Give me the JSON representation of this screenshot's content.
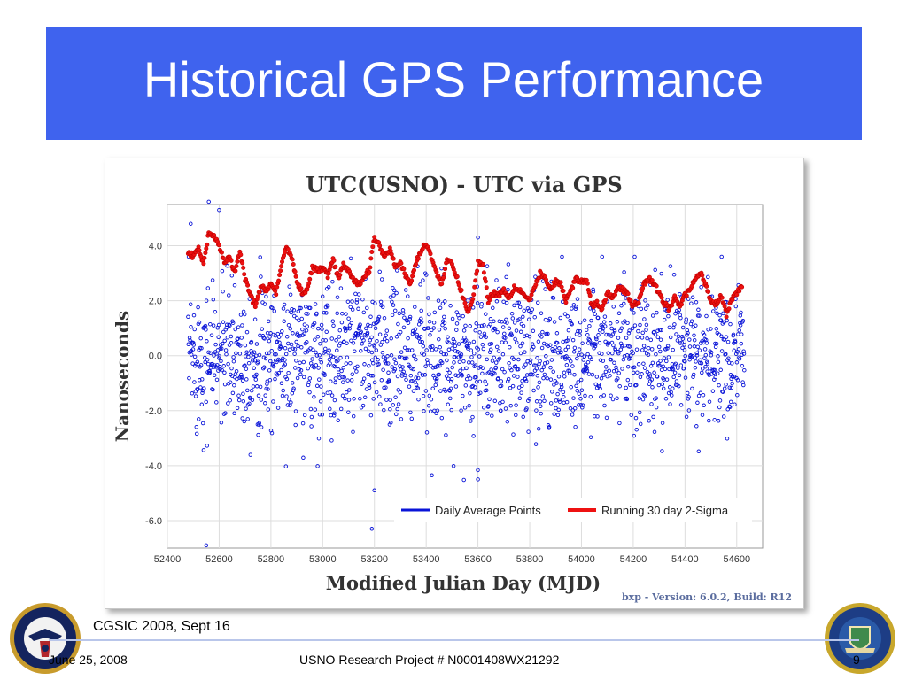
{
  "slide": {
    "title": "Historical GPS Performance",
    "footer_event": "CGSIC 2008, Sept 16",
    "footer_date": "June 25, 2008",
    "footer_project": "USNO Research Project # N0001408WX21292",
    "page_number": "9",
    "left_seal_icon": "navy-seal-icon",
    "right_seal_icon": "state-seal-icon",
    "colors": {
      "title_bar": "#3f63ee",
      "daily": "#0a14d8",
      "sigma": "#ee1111"
    }
  },
  "chart_data": {
    "type": "scatter",
    "title": "UTC(USNO) - UTC via GPS",
    "xlabel": "Modified Julian Day (MJD)",
    "ylabel": "Nanoseconds",
    "xlim": [
      52400,
      54700
    ],
    "ylim": [
      -7.0,
      5.5
    ],
    "x_ticks": [
      "52400",
      "52600",
      "52800",
      "53000",
      "53200",
      "53400",
      "53600",
      "53800",
      "54000",
      "54200",
      "54400",
      "54600"
    ],
    "y_ticks": [
      "4.0",
      "2.0",
      "0.0",
      "-2.0",
      "-4.0",
      "-6.0"
    ],
    "grid": true,
    "legend_position": "bottom-right",
    "version_note": "bxp - Version: 6.0.2, Build: R12",
    "series": [
      {
        "name": "Daily Average Points",
        "style": "open-circle-scatter",
        "approx_center": 0.0,
        "approx_spread": 1.3,
        "outliers": [
          [
            52560,
            5.6
          ],
          [
            52600,
            5.3
          ],
          [
            52550,
            -6.9
          ],
          [
            53190,
            -6.3
          ],
          [
            53600,
            4.3
          ],
          [
            53200,
            -4.9
          ],
          [
            53600,
            -4.5
          ],
          [
            52490,
            4.8
          ]
        ]
      },
      {
        "name": "Running 30 day 2-Sigma",
        "style": "dense-marker-line",
        "x": [
          52480,
          52500,
          52520,
          52540,
          52560,
          52580,
          52600,
          52620,
          52640,
          52660,
          52680,
          52700,
          52720,
          52740,
          52760,
          52780,
          52800,
          52820,
          52840,
          52860,
          52880,
          52900,
          52920,
          52940,
          52960,
          52980,
          53000,
          53020,
          53040,
          53060,
          53080,
          53100,
          53120,
          53140,
          53160,
          53180,
          53200,
          53220,
          53240,
          53260,
          53280,
          53300,
          53320,
          53340,
          53360,
          53380,
          53400,
          53420,
          53440,
          53460,
          53480,
          53500,
          53520,
          53540,
          53560,
          53580,
          53600,
          53620,
          53640,
          53660,
          53680,
          53700,
          53720,
          53740,
          53760,
          53780,
          53800,
          53820,
          53840,
          53860,
          53880,
          53900,
          53920,
          53940,
          53960,
          53980,
          54000,
          54020,
          54040,
          54060,
          54080,
          54100,
          54120,
          54140,
          54160,
          54180,
          54200,
          54220,
          54240,
          54260,
          54280,
          54300,
          54320,
          54340,
          54360,
          54380,
          54400,
          54420,
          54440,
          54460,
          54480,
          54500,
          54520,
          54540,
          54560,
          54580,
          54600,
          54620
        ],
        "y": [
          3.8,
          3.6,
          3.9,
          3.3,
          4.5,
          4.3,
          4.0,
          3.4,
          3.6,
          3.0,
          3.8,
          2.8,
          2.2,
          1.8,
          2.5,
          2.4,
          2.6,
          2.3,
          3.2,
          4.0,
          3.6,
          2.7,
          2.3,
          2.4,
          3.2,
          3.1,
          3.2,
          2.9,
          3.5,
          2.8,
          3.3,
          3.1,
          2.7,
          2.6,
          2.9,
          3.1,
          4.3,
          4.0,
          3.6,
          3.9,
          3.3,
          3.4,
          2.9,
          2.6,
          3.4,
          3.8,
          4.1,
          3.6,
          3.0,
          2.6,
          3.5,
          3.3,
          2.8,
          2.2,
          1.6,
          2.0,
          3.4,
          3.3,
          2.0,
          2.3,
          2.2,
          2.4,
          2.1,
          2.5,
          2.4,
          2.2,
          2.0,
          2.5,
          3.0,
          2.8,
          2.4,
          2.7,
          2.6,
          2.0,
          2.4,
          2.8,
          2.7,
          2.8,
          1.8,
          1.9,
          1.7,
          2.3,
          2.1,
          2.5,
          2.4,
          2.2,
          1.8,
          2.0,
          2.6,
          2.8,
          2.6,
          2.3,
          1.9,
          1.7,
          2.1,
          1.8,
          2.2,
          2.4,
          2.8,
          3.0,
          2.6,
          2.0,
          1.9,
          2.2,
          1.5,
          2.0,
          2.3,
          2.5
        ]
      }
    ]
  }
}
